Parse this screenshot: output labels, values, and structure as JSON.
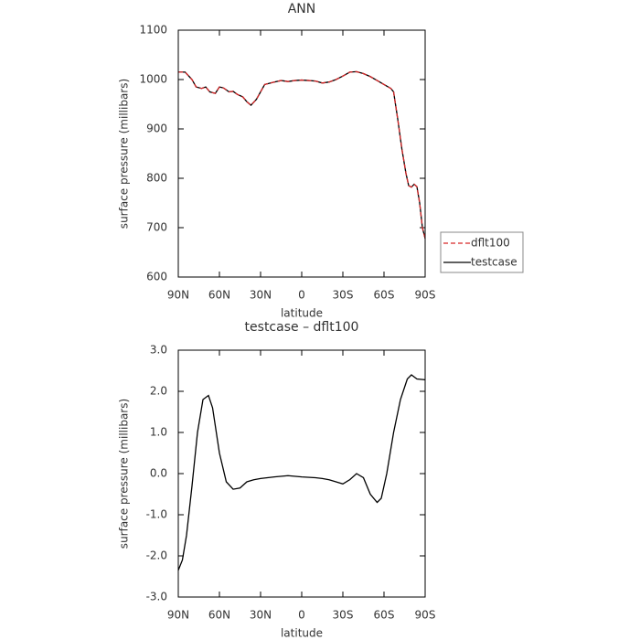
{
  "chart_data": [
    {
      "type": "line",
      "title": "ANN",
      "x_label": "latitude",
      "y_label": "surface pressure (millibars)",
      "x": [
        90,
        85,
        80,
        77,
        73,
        70,
        67,
        63,
        60,
        57,
        53,
        50,
        47,
        43,
        40,
        37,
        33,
        30,
        27,
        20,
        15,
        10,
        5,
        0,
        -5,
        -10,
        -15,
        -20,
        -25,
        -30,
        -35,
        -40,
        -45,
        -50,
        -55,
        -60,
        -65,
        -67,
        -70,
        -73,
        -76,
        -78,
        -80,
        -82,
        -84,
        -86,
        -88,
        -90
      ],
      "series": [
        {
          "name": "dflt100",
          "color": "#d62728",
          "dashed": true,
          "values": [
            1015,
            1015,
            1000,
            985,
            982,
            985,
            975,
            972,
            985,
            983,
            975,
            976,
            970,
            965,
            955,
            948,
            960,
            975,
            990,
            995,
            998,
            996,
            998,
            999,
            998,
            997,
            993,
            995,
            1000,
            1007,
            1015,
            1016,
            1012,
            1006,
            998,
            990,
            982,
            975,
            920,
            860,
            810,
            785,
            782,
            788,
            783,
            750,
            700,
            678
          ]
        },
        {
          "name": "testcase",
          "color": "#000000",
          "dashed": false,
          "values": [
            1015,
            1015,
            1000,
            985,
            982,
            985,
            975,
            972,
            985,
            983,
            975,
            976,
            970,
            965,
            955,
            948,
            960,
            975,
            990,
            995,
            998,
            996,
            998,
            999,
            998,
            997,
            993,
            995,
            1000,
            1007,
            1015,
            1016,
            1012,
            1006,
            998,
            990,
            982,
            975,
            920,
            860,
            810,
            785,
            782,
            788,
            783,
            750,
            700,
            678
          ]
        }
      ],
      "xlim": [
        90,
        -90
      ],
      "xticks": [
        {
          "value": 90,
          "label": "90N"
        },
        {
          "value": 60,
          "label": "60N"
        },
        {
          "value": 30,
          "label": "30N"
        },
        0,
        {
          "value": -30,
          "label": "30S"
        },
        {
          "value": -60,
          "label": "60S"
        },
        {
          "value": -90,
          "label": "90S"
        }
      ],
      "ylim": [
        600,
        1100
      ],
      "yticks": [
        600,
        700,
        800,
        900,
        1000,
        1100
      ],
      "legend": "right"
    },
    {
      "type": "line",
      "title": "testcase – dflt100",
      "x_label": "latitude",
      "y_label": "surface pressure (millibars)",
      "x": [
        90,
        87,
        84,
        80,
        76,
        72,
        68,
        65,
        60,
        55,
        50,
        45,
        40,
        35,
        30,
        20,
        10,
        0,
        -10,
        -15,
        -20,
        -25,
        -30,
        -35,
        -40,
        -45,
        -50,
        -55,
        -58,
        -62,
        -67,
        -72,
        -77,
        -80,
        -84,
        -90
      ],
      "series": [
        {
          "name": "testcase – dflt100",
          "color": "#000000",
          "dashed": false,
          "values": [
            -2.35,
            -2.1,
            -1.5,
            -0.3,
            1.0,
            1.8,
            1.9,
            1.6,
            0.5,
            -0.2,
            -0.38,
            -0.35,
            -0.2,
            -0.15,
            -0.12,
            -0.08,
            -0.05,
            -0.08,
            -0.1,
            -0.12,
            -0.15,
            -0.2,
            -0.25,
            -0.15,
            0.0,
            -0.1,
            -0.5,
            -0.7,
            -0.6,
            0.0,
            1.0,
            1.8,
            2.3,
            2.4,
            2.3,
            2.28
          ]
        }
      ],
      "xlim": [
        90,
        -90
      ],
      "xticks": [
        {
          "value": 90,
          "label": "90N"
        },
        {
          "value": 60,
          "label": "60N"
        },
        {
          "value": 30,
          "label": "30N"
        },
        0,
        {
          "value": -30,
          "label": "30S"
        },
        {
          "value": -60,
          "label": "60S"
        },
        {
          "value": -90,
          "label": "90S"
        }
      ],
      "ylim": [
        -3,
        3
      ],
      "yticks": [
        {
          "value": -3,
          "label": "-3.0"
        },
        {
          "value": -2,
          "label": "-2.0"
        },
        {
          "value": -1,
          "label": "-1.0"
        },
        {
          "value": 0,
          "label": "0.0"
        },
        {
          "value": 1,
          "label": "1.0"
        },
        {
          "value": 2,
          "label": "2.0"
        },
        {
          "value": 3,
          "label": "3.0"
        }
      ]
    }
  ]
}
